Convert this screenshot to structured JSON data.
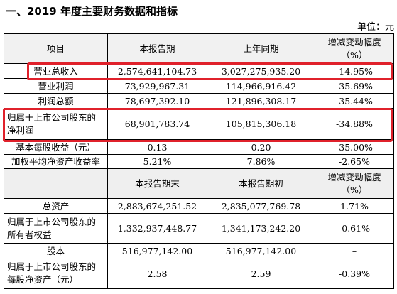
{
  "heading": "一、2019 年度主要财务数据和指标",
  "unit": "单位：元",
  "table": {
    "header1": {
      "c1": "项目",
      "c2": "本报告期",
      "c3": "上年同期",
      "c4a": "增减变动幅度",
      "c4b": "（%）"
    },
    "rows1": [
      {
        "label": "营业总收入",
        "v1": "2,574,641,104.73",
        "v2": "3,027,275,935.20",
        "v3": "-14.95%"
      },
      {
        "label": "营业利润",
        "v1": "73,929,967.31",
        "v2": "114,966,916.42",
        "v3": "-35.69%"
      },
      {
        "label": "利润总额",
        "v1": "78,697,392.10",
        "v2": "121,896,308.17",
        "v3": "-35.44%"
      },
      {
        "label_a": "归属于上市公司股东的",
        "label_b": "净利润",
        "v1": "68,901,783.74",
        "v2": "105,815,306.18",
        "v3": "-34.88%"
      },
      {
        "label": "基本每股收益（元）",
        "v1": "0.13",
        "v2": "0.20",
        "v3": "-35.00%"
      },
      {
        "label": "加权平均净资产收益率",
        "v1": "5.21%",
        "v2": "7.86%",
        "v3": "-2.65%"
      }
    ],
    "header2": {
      "c1": "",
      "c2": "本报告期末",
      "c3": "本报告期初",
      "c4a": "增减变动幅度",
      "c4b": "（%）"
    },
    "rows2": [
      {
        "label": "总资产",
        "v1": "2,883,674,251.52",
        "v2": "2,835,077,769.78",
        "v3": "1.71%"
      },
      {
        "label_a": "归属于上市公司股东的",
        "label_b": "所有者权益",
        "v1": "1,332,937,448.77",
        "v2": "1,341,173,242.20",
        "v3": "-0.61%"
      },
      {
        "label": "股本",
        "v1": "516,977,142.00",
        "v2": "516,977,142.00",
        "v3": "–"
      },
      {
        "label_a": "归属于上市公司股东的",
        "label_b": "每股净资产（元）",
        "v1": "2.58",
        "v2": "2.59",
        "v3": "-0.39%"
      }
    ]
  },
  "highlight_color": "#e0212b"
}
